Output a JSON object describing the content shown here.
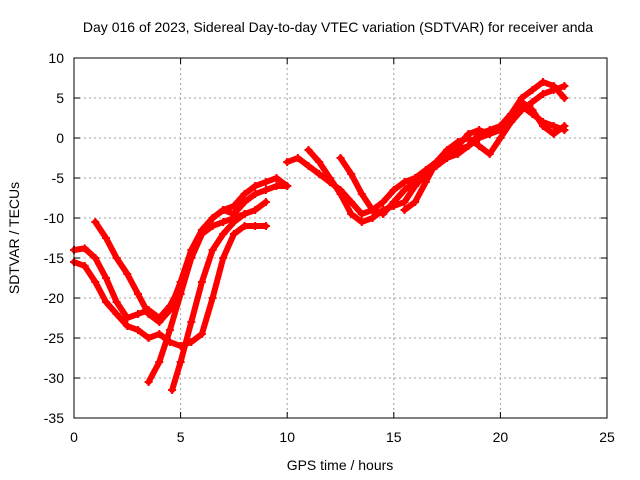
{
  "chart_data": {
    "type": "scatter",
    "title": "Day 016 of 2023, Sidereal Day-to-day VTEC variation (SDTVAR) for receiver anda",
    "xlabel": "GPS time / hours",
    "ylabel": "SDTVAR / TECUs",
    "xlim": [
      0,
      25
    ],
    "ylim": [
      -35,
      10
    ],
    "xticks": [
      0,
      5,
      10,
      15,
      20,
      25
    ],
    "yticks": [
      -35,
      -30,
      -25,
      -20,
      -15,
      -10,
      -5,
      0,
      5,
      10
    ],
    "grid": true,
    "legend": "none",
    "marker": "plus",
    "color": "#ff0000",
    "series": [
      {
        "x": [
          0.0,
          0.5,
          1.0,
          1.5,
          2.0,
          2.5,
          3.0,
          3.5,
          4.0,
          4.5,
          5.0,
          5.5,
          6.0,
          6.5,
          7.0,
          7.5,
          8.0,
          8.5,
          9.0,
          9.5,
          10.0
        ],
        "y": [
          -14.0,
          -13.8,
          -15.0,
          -17.5,
          -20.5,
          -22.5,
          -22.0,
          -21.5,
          -22.5,
          -21.0,
          -18.5,
          -15.0,
          -12.0,
          -10.0,
          -9.0,
          -9.5,
          -8.0,
          -7.0,
          -6.5,
          -6.0,
          -6.0
        ]
      },
      {
        "x": [
          0.0,
          0.5,
          1.0,
          1.5,
          2.0,
          2.5,
          3.0,
          3.5,
          4.0,
          4.5,
          5.0,
          5.5,
          6.0,
          6.5,
          7.0,
          7.5,
          8.0,
          8.5,
          9.0
        ],
        "y": [
          -15.5,
          -16.0,
          -18.0,
          -20.5,
          -22.0,
          -23.5,
          -24.0,
          -25.0,
          -24.5,
          -25.5,
          -26.0,
          -25.5,
          -24.5,
          -20.0,
          -15.0,
          -12.0,
          -11.0,
          -11.0,
          -11.0
        ]
      },
      {
        "x": [
          1.0,
          1.5,
          2.0,
          2.5,
          3.0,
          3.5,
          4.0,
          4.5,
          5.0,
          5.5,
          6.0,
          6.5,
          7.0,
          7.5,
          8.0,
          8.5,
          9.0,
          9.5,
          10.0
        ],
        "y": [
          -10.5,
          -12.5,
          -15.0,
          -17.0,
          -19.5,
          -22.0,
          -23.0,
          -21.5,
          -18.0,
          -14.0,
          -11.5,
          -10.0,
          -9.0,
          -8.5,
          -7.0,
          -6.0,
          -5.5,
          -5.0,
          -6.0
        ]
      },
      {
        "x": [
          3.5,
          4.0,
          4.5,
          5.0,
          5.5,
          6.0,
          6.5,
          7.0,
          7.5,
          8.0,
          8.5,
          9.0
        ],
        "y": [
          -30.5,
          -28.0,
          -24.0,
          -19.5,
          -15.0,
          -12.0,
          -11.0,
          -10.5,
          -10.0,
          -9.5,
          -9.0,
          -8.0
        ]
      },
      {
        "x": [
          4.6,
          5.0,
          5.5,
          6.0,
          6.5,
          7.0,
          7.5,
          8.0
        ],
        "y": [
          -31.5,
          -28.0,
          -23.0,
          -18.0,
          -14.0,
          -12.0,
          -10.5,
          -9.5
        ]
      },
      {
        "x": [
          10.0,
          10.5,
          11.0,
          11.5,
          12.0,
          12.5,
          13.0,
          13.5,
          14.0,
          14.5,
          15.0,
          15.5,
          16.0,
          16.5,
          17.0,
          17.5,
          18.0,
          18.5,
          19.0,
          19.5,
          20.0,
          20.5,
          21.0,
          21.5,
          22.0,
          22.5,
          23.0
        ],
        "y": [
          -3.0,
          -2.5,
          -3.5,
          -4.5,
          -5.5,
          -6.5,
          -8.0,
          -9.5,
          -9.0,
          -8.0,
          -6.5,
          -5.5,
          -5.0,
          -4.0,
          -3.0,
          -2.0,
          -1.5,
          -1.0,
          0.0,
          0.5,
          1.0,
          2.0,
          3.5,
          4.5,
          5.5,
          6.0,
          6.5
        ]
      },
      {
        "x": [
          11.0,
          11.5,
          12.0,
          12.5,
          13.0,
          13.5,
          14.0,
          14.5,
          15.0,
          15.5,
          16.0,
          16.5,
          17.0,
          17.5,
          18.0,
          18.5,
          19.0,
          19.5,
          20.0,
          20.5,
          21.0,
          21.5,
          22.0,
          22.5,
          23.0
        ],
        "y": [
          -1.5,
          -3.0,
          -5.0,
          -7.0,
          -9.5,
          -10.5,
          -10.0,
          -9.0,
          -8.5,
          -8.0,
          -6.0,
          -4.5,
          -3.5,
          -2.5,
          -2.0,
          -1.0,
          0.5,
          1.0,
          1.5,
          3.0,
          5.0,
          6.0,
          7.0,
          6.5,
          5.0
        ]
      },
      {
        "x": [
          12.5,
          13.0,
          13.5,
          14.0,
          14.5,
          15.0,
          15.5,
          16.0,
          16.5,
          17.0,
          17.5,
          18.0,
          18.5,
          19.0,
          19.5,
          20.0,
          20.5,
          21.0,
          21.5,
          22.0,
          22.5,
          23.0
        ],
        "y": [
          -2.5,
          -4.5,
          -7.0,
          -9.0,
          -9.5,
          -8.0,
          -6.5,
          -5.5,
          -4.5,
          -3.0,
          -2.0,
          -1.0,
          0.5,
          1.0,
          0.5,
          1.5,
          2.5,
          4.0,
          3.0,
          2.0,
          1.5,
          1.0
        ]
      },
      {
        "x": [
          15.5,
          16.0,
          16.5,
          17.0,
          17.5,
          18.0,
          18.5,
          19.0,
          19.5,
          20.0,
          20.5,
          21.0,
          21.5,
          22.0,
          22.5,
          23.0
        ],
        "y": [
          -9.0,
          -8.0,
          -5.5,
          -3.0,
          -1.5,
          -0.5,
          0.0,
          -1.0,
          -2.0,
          0.0,
          2.0,
          4.5,
          3.5,
          1.5,
          0.5,
          1.5
        ]
      }
    ]
  }
}
